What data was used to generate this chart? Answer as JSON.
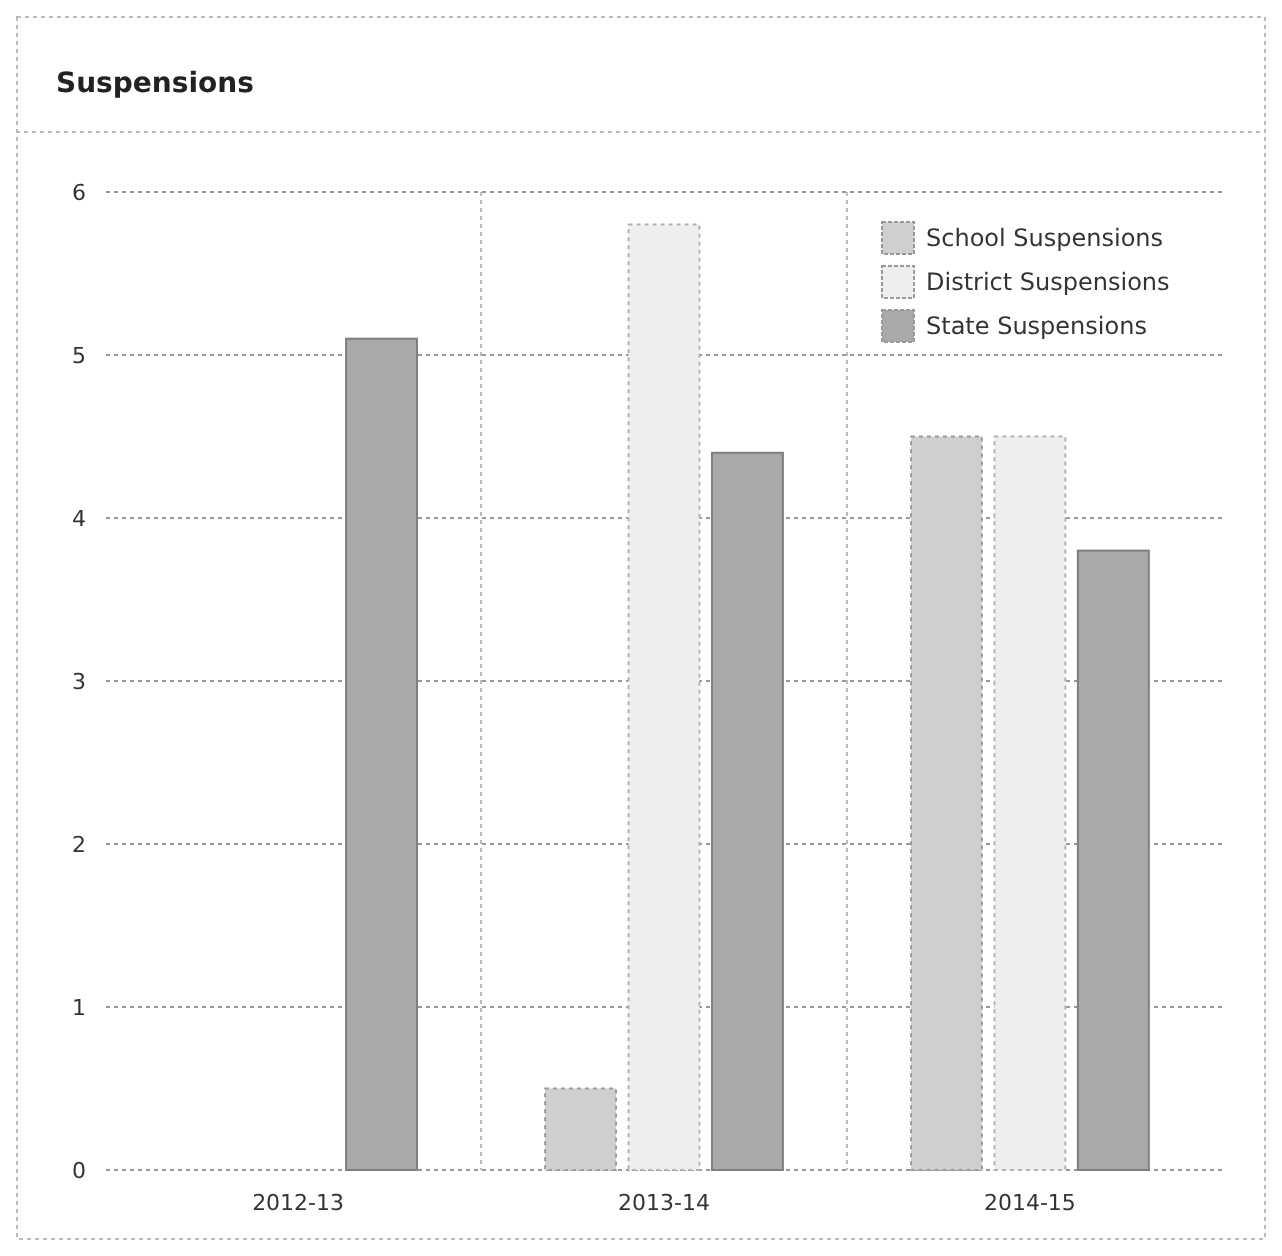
{
  "chart_data": {
    "type": "bar",
    "title": "Suspensions",
    "categories": [
      "2012-13",
      "2013-14",
      "2014-15"
    ],
    "series": [
      {
        "name": "School Suspensions",
        "color": "#cfcfcf",
        "values": [
          0,
          0.5,
          4.5
        ]
      },
      {
        "name": "District Suspensions",
        "color": "#eeeeee",
        "values": [
          0,
          5.8,
          4.5
        ]
      },
      {
        "name": "State Suspensions",
        "color": "#a9a9a9",
        "values": [
          5.1,
          4.4,
          3.8
        ]
      }
    ],
    "ylim": [
      0,
      6
    ],
    "yticks": [
      0,
      1,
      2,
      3,
      4,
      5,
      6
    ],
    "grid": true,
    "legend": "top right"
  }
}
